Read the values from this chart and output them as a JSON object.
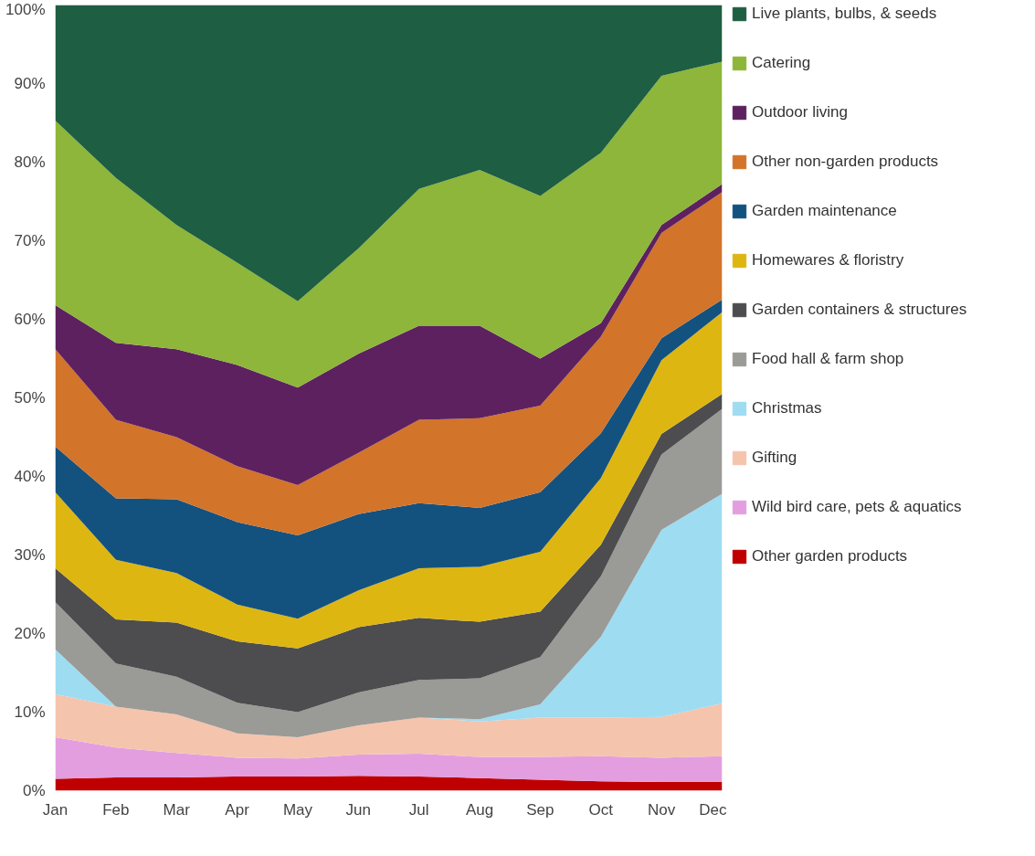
{
  "chart_data": {
    "type": "area",
    "stacked": true,
    "legend": "right",
    "grid": false,
    "categories": [
      "Jan",
      "Feb",
      "Mar",
      "Apr",
      "May",
      "Jun",
      "Jul",
      "Aug",
      "Sep",
      "Oct",
      "Nov",
      "Dec"
    ],
    "ylim": [
      0,
      100
    ],
    "yticks": [
      {
        "value": 0,
        "label": "0%"
      },
      {
        "value": 10,
        "label": "10%"
      },
      {
        "value": 20,
        "label": "20%"
      },
      {
        "value": 30,
        "label": "30%"
      },
      {
        "value": 40,
        "label": "40%"
      },
      {
        "value": 50,
        "label": "50%"
      },
      {
        "value": 60,
        "label": "60%"
      },
      {
        "value": 70,
        "label": "70%"
      },
      {
        "value": 80,
        "label": "80%"
      },
      {
        "value": 90,
        "label": "90%"
      },
      {
        "value": 100,
        "label": "100%"
      }
    ],
    "series": [
      {
        "name": "Other garden products",
        "color": "#c00000",
        "values": [
          1.5,
          1.7,
          1.7,
          1.8,
          1.8,
          1.9,
          1.8,
          1.6,
          1.4,
          1.2,
          1.1,
          1.1
        ]
      },
      {
        "name": "Wild bird care, pets & aquatics",
        "color": "#e39ee0",
        "values": [
          5.3,
          3.8,
          3.1,
          2.4,
          2.3,
          2.7,
          2.9,
          2.7,
          2.9,
          3.2,
          3.1,
          3.3
        ]
      },
      {
        "name": "Gifting",
        "color": "#f5c4ad",
        "values": [
          5.5,
          5.2,
          4.9,
          3.1,
          2.7,
          3.7,
          4.6,
          4.5,
          5.0,
          4.9,
          5.2,
          6.7
        ]
      },
      {
        "name": "Christmas",
        "color": "#9edcf2",
        "values": [
          5.7,
          0,
          0,
          0,
          0,
          0,
          0,
          0.3,
          1.7,
          10.3,
          23.8,
          26.7
        ]
      },
      {
        "name": "Food hall & farm shop",
        "color": "#9a9a96",
        "values": [
          6.0,
          5.5,
          4.8,
          3.9,
          3.2,
          4.2,
          4.8,
          5.2,
          6.0,
          7.7,
          9.6,
          10.8
        ]
      },
      {
        "name": "Garden containers & structures",
        "color": "#4d4d4f",
        "values": [
          4.3,
          5.6,
          6.9,
          7.8,
          8.1,
          8.3,
          7.9,
          7.2,
          5.8,
          4.0,
          2.6,
          1.9
        ]
      },
      {
        "name": "Homewares & floristry",
        "color": "#deb612",
        "values": [
          9.7,
          7.6,
          6.3,
          4.7,
          3.8,
          4.7,
          6.3,
          7.0,
          7.6,
          8.5,
          9.4,
          10.4
        ]
      },
      {
        "name": "Garden maintenance",
        "color": "#13527f",
        "values": [
          5.8,
          7.8,
          9.4,
          10.5,
          10.6,
          9.7,
          8.3,
          7.5,
          7.6,
          5.7,
          2.8,
          1.6
        ]
      },
      {
        "name": "Other non-garden products",
        "color": "#d2742a",
        "values": [
          12.4,
          10.0,
          7.9,
          7.1,
          6.4,
          7.8,
          10.6,
          11.4,
          11.0,
          12.3,
          13.4,
          13.7
        ]
      },
      {
        "name": "Outdoor living",
        "color": "#5e2160",
        "values": [
          5.6,
          9.8,
          11.2,
          12.9,
          12.4,
          12.6,
          12.0,
          11.8,
          6.0,
          1.7,
          1.0,
          1.0
        ]
      },
      {
        "name": "Catering",
        "color": "#8db63a",
        "values": [
          23.5,
          21.0,
          15.8,
          13.0,
          11.0,
          13.4,
          17.4,
          19.8,
          20.7,
          21.7,
          19.0,
          15.6
        ]
      },
      {
        "name": "Live plants, bulbs, & seeds",
        "color": "#1e5e42",
        "values": [
          14.7,
          22.0,
          28.0,
          32.8,
          37.7,
          31.0,
          23.4,
          21.0,
          24.3,
          18.8,
          9.0,
          7.2
        ]
      }
    ]
  }
}
